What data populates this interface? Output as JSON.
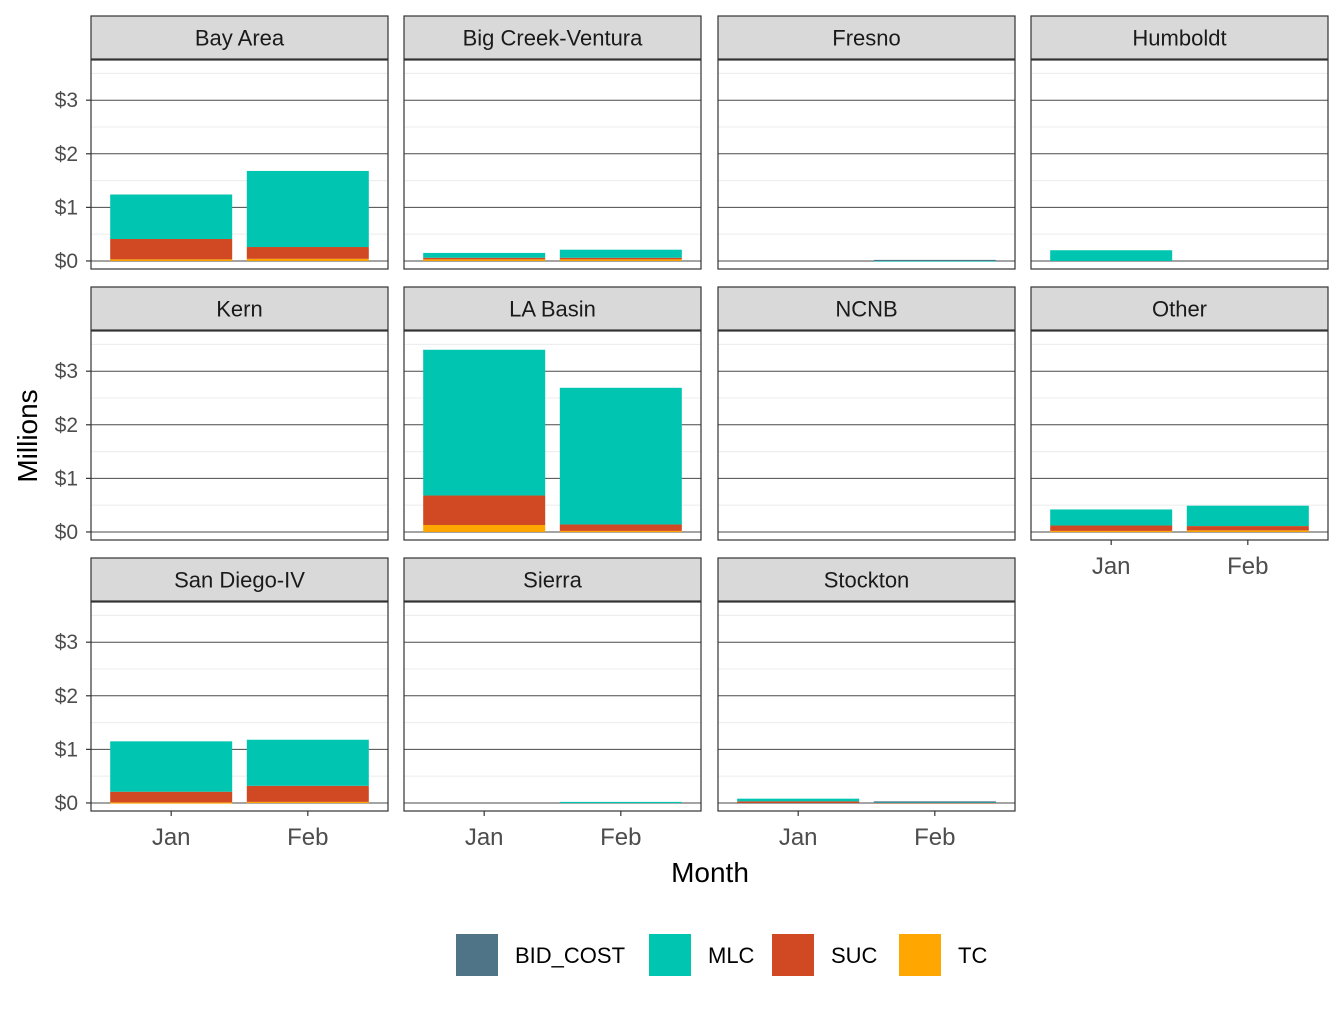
{
  "chart_data": {
    "type": "bar",
    "stacked": true,
    "facet_layout": "wrap",
    "xlabel": "Month",
    "ylabel": "Millions",
    "categories": [
      "Jan",
      "Feb"
    ],
    "y_ticks": [
      "$0",
      "$1",
      "$2",
      "$3"
    ],
    "ylim": [
      -0.15,
      3.75
    ],
    "grid": true,
    "legend_position": "bottom",
    "legend": [
      "BID_COST",
      "MLC",
      "SUC",
      "TC"
    ],
    "colors": {
      "BID_COST": "#4f7387",
      "MLC": "#00c6b1",
      "SUC": "#d14922",
      "TC": "#ffa600",
      "strip_bg": "#d9d9d9",
      "panel_border": "#333333",
      "grid_major": "#4a4a4a",
      "grid_minor": "#ececec"
    },
    "panels": [
      {
        "name": "Bay Area",
        "series": {
          "BID_COST": [
            0,
            0
          ],
          "MLC": [
            0.83,
            1.42
          ],
          "SUC": [
            0.38,
            0.22
          ],
          "TC": [
            0.03,
            0.04
          ]
        }
      },
      {
        "name": "Big Creek-Ventura",
        "series": {
          "BID_COST": [
            0,
            0
          ],
          "MLC": [
            0.09,
            0.15
          ],
          "SUC": [
            0.03,
            0.03
          ],
          "TC": [
            0.03,
            0.03
          ]
        }
      },
      {
        "name": "Fresno",
        "series": {
          "BID_COST": [
            0,
            0.01
          ],
          "MLC": [
            0,
            0.01
          ],
          "SUC": [
            0,
            0
          ],
          "TC": [
            0,
            0
          ]
        }
      },
      {
        "name": "Humboldt",
        "series": {
          "BID_COST": [
            0,
            0
          ],
          "MLC": [
            0.2,
            0
          ],
          "SUC": [
            0,
            0
          ],
          "TC": [
            0,
            0
          ]
        }
      },
      {
        "name": "Kern",
        "series": {
          "BID_COST": [
            0,
            0
          ],
          "MLC": [
            0,
            0
          ],
          "SUC": [
            0,
            0
          ],
          "TC": [
            0,
            0
          ]
        }
      },
      {
        "name": "LA Basin",
        "series": {
          "BID_COST": [
            0,
            0
          ],
          "MLC": [
            2.72,
            2.55
          ],
          "SUC": [
            0.55,
            0.12
          ],
          "TC": [
            0.13,
            0.02
          ]
        }
      },
      {
        "name": "NCNB",
        "series": {
          "BID_COST": [
            0,
            0
          ],
          "MLC": [
            0,
            0
          ],
          "SUC": [
            0,
            0
          ],
          "TC": [
            0,
            0
          ]
        }
      },
      {
        "name": "Other",
        "series": {
          "BID_COST": [
            0,
            0
          ],
          "MLC": [
            0.3,
            0.38
          ],
          "SUC": [
            0.1,
            0.08
          ],
          "TC": [
            0.02,
            0.03
          ]
        }
      },
      {
        "name": "San Diego-IV",
        "series": {
          "BID_COST": [
            0,
            0
          ],
          "MLC": [
            0.94,
            0.86
          ],
          "SUC": [
            0.2,
            0.3
          ],
          "TC": [
            0.01,
            0.02
          ]
        }
      },
      {
        "name": "Sierra",
        "series": {
          "BID_COST": [
            0,
            0
          ],
          "MLC": [
            0,
            0.02
          ],
          "SUC": [
            0,
            0
          ],
          "TC": [
            0,
            0
          ]
        }
      },
      {
        "name": "Stockton",
        "series": {
          "BID_COST": [
            0,
            0.01
          ],
          "MLC": [
            0.05,
            0.01
          ],
          "SUC": [
            0.03,
            0.01
          ],
          "TC": [
            0,
            0
          ]
        }
      }
    ]
  }
}
